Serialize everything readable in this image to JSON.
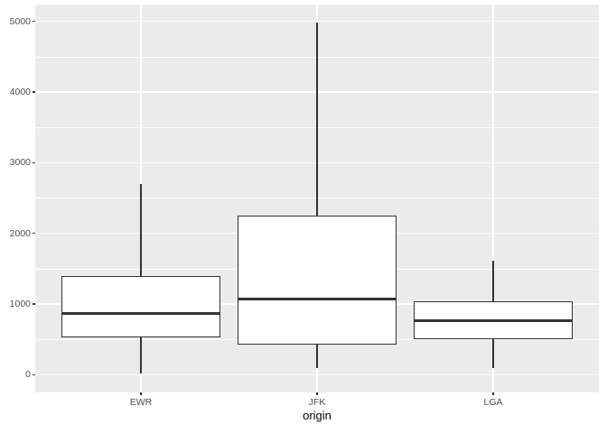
{
  "chart_data": {
    "type": "boxplot",
    "title": "",
    "xlabel": "origin",
    "ylabel": "",
    "categories": [
      "EWR",
      "JFK",
      "LGA"
    ],
    "series": [
      {
        "name": "EWR",
        "whisker_low": 17,
        "q1": 533,
        "median": 872,
        "q3": 1400,
        "whisker_high": 2693,
        "outliers": []
      },
      {
        "name": "JFK",
        "whisker_low": 94,
        "q1": 427,
        "median": 1069,
        "q3": 2248,
        "whisker_high": 4983,
        "outliers": []
      },
      {
        "name": "LGA",
        "whisker_low": 96,
        "q1": 502,
        "median": 762,
        "q3": 1035,
        "whisker_high": 1620,
        "outliers": []
      }
    ],
    "yticks": [
      0,
      1000,
      2000,
      3000,
      4000,
      5000
    ],
    "ytick_labels": [
      "0",
      "1000",
      "2000",
      "3000",
      "4000",
      "5000"
    ],
    "yticks_minor": [
      500,
      1500,
      2500,
      3500,
      4500
    ],
    "ylim": [
      -250,
      5240
    ],
    "grid": "major-and-minor-horizontal, major-vertical-at-categories",
    "legend": "none",
    "style": "ggplot2-theme-gray"
  },
  "colors": {
    "figure_background": "#FFFFFF",
    "panel_background": "#EBEBEB",
    "grid_major": "#FFFFFF",
    "grid_minor": "#FFFFFF",
    "box_fill": "#FFFFFF",
    "box_stroke": "#333333",
    "median_stroke": "#333333",
    "tick_mark": "#333333",
    "tick_label": "#4D4D4D",
    "axis_title": "#000000"
  }
}
